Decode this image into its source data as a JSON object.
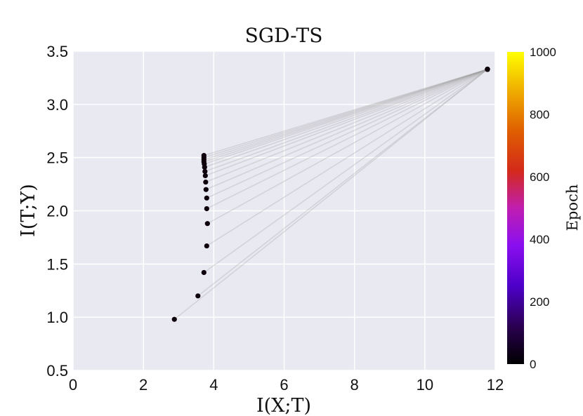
{
  "chart_data": {
    "type": "scatter",
    "title": "SGD-TS",
    "xlabel": "I(X;T)",
    "ylabel": "I(T;Y)",
    "xlim": [
      0,
      12
    ],
    "ylim": [
      0.5,
      3.5
    ],
    "xticks": [
      "0",
      "2",
      "4",
      "6",
      "8",
      "10",
      "12"
    ],
    "yticks": [
      "0.5",
      "1.0",
      "1.5",
      "2.0",
      "2.5",
      "3.0",
      "3.5"
    ],
    "grid": true,
    "background": "#e9e9f1",
    "colorbar": {
      "label": "Epoch",
      "range": [
        0,
        1000
      ],
      "ticks": [
        "0",
        "200",
        "400",
        "600",
        "800",
        "1000"
      ],
      "colormap": "gnuplot"
    },
    "series": [
      {
        "layer": "output",
        "x": [
          11.78,
          11.78,
          11.78,
          11.78,
          11.78,
          11.78,
          11.78,
          11.78,
          11.78,
          11.78,
          11.78,
          11.78,
          11.78,
          11.78,
          11.78,
          11.78,
          11.78
        ],
        "y": [
          3.33,
          3.33,
          3.33,
          3.33,
          3.33,
          3.33,
          3.33,
          3.33,
          3.33,
          3.33,
          3.33,
          3.33,
          3.33,
          3.33,
          3.33,
          3.33,
          3.33
        ]
      },
      {
        "layer": "hidden",
        "x": [
          2.88,
          3.55,
          3.72,
          3.8,
          3.82,
          3.8,
          3.8,
          3.78,
          3.77,
          3.76,
          3.75,
          3.74,
          3.73,
          3.72,
          3.72,
          3.72,
          3.72
        ],
        "y": [
          0.98,
          1.2,
          1.42,
          1.67,
          1.88,
          2.02,
          2.12,
          2.2,
          2.27,
          2.33,
          2.37,
          2.41,
          2.44,
          2.46,
          2.48,
          2.5,
          2.52
        ]
      }
    ],
    "epochs": [
      0,
      1,
      2,
      3,
      4,
      5,
      6,
      7,
      8,
      9,
      10,
      11,
      12,
      13,
      14,
      15,
      16
    ],
    "line_color": "#a0a0a0",
    "point_color": "#0d000a"
  }
}
